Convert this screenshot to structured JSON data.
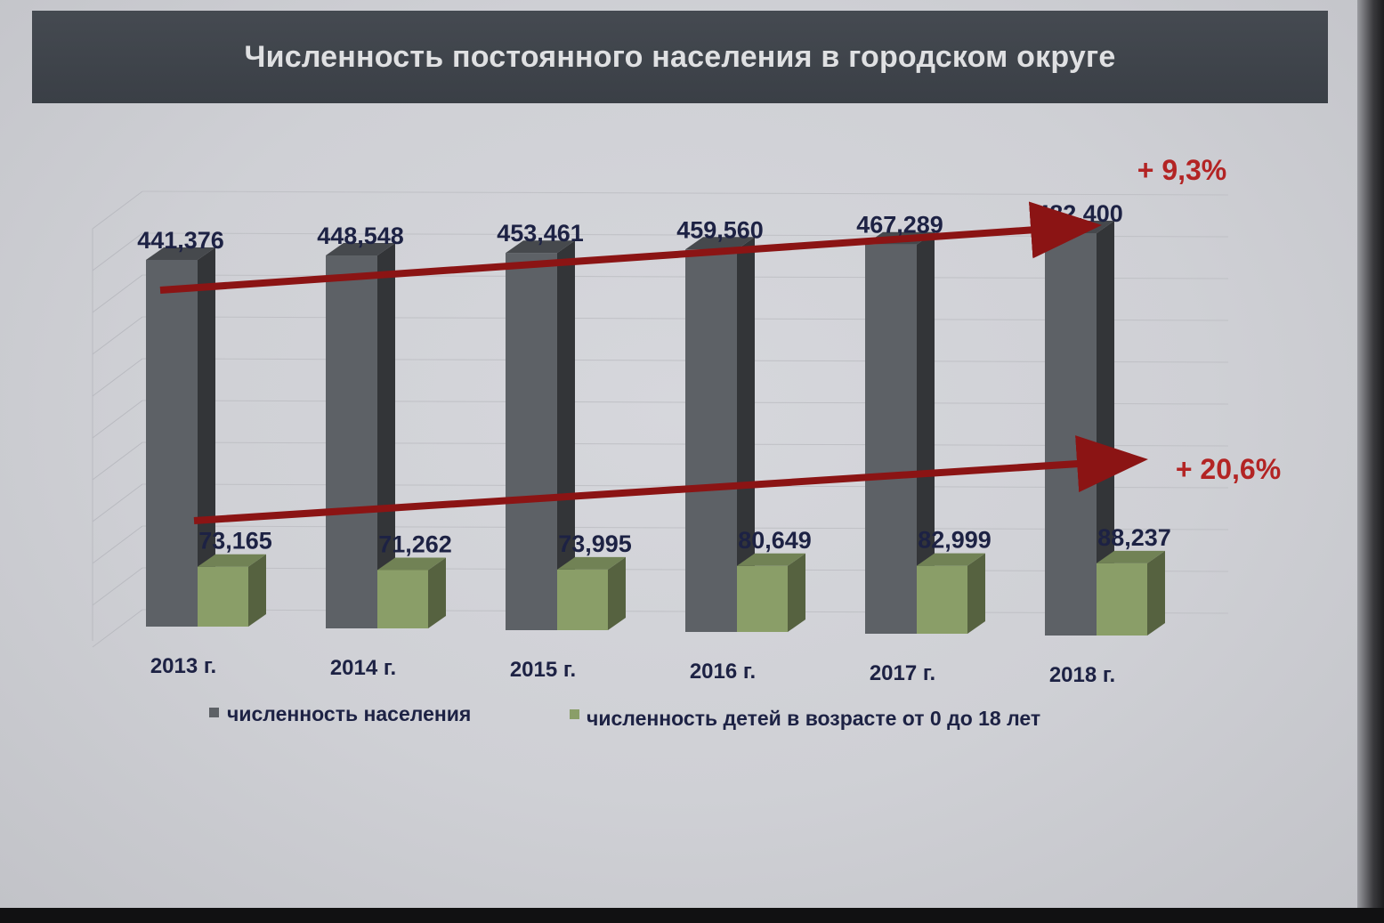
{
  "slide": {
    "title": "Численность постоянного населения в городском округе"
  },
  "colors": {
    "population_bar": "#5d6166",
    "children_bar": "#8a9e68",
    "trend_arrow": "#8b1414",
    "value_label": "#1d2244",
    "growth_label": "#b32424"
  },
  "chart_data": {
    "type": "bar",
    "title": "Численность постоянного населения в городском округе",
    "categories": [
      "2013 г.",
      "2014 г.",
      "2015 г.",
      "2016 г.",
      "2017 г.",
      "2018 г."
    ],
    "series": [
      {
        "name": "численность населения",
        "values": [
          441376,
          448548,
          453461,
          459560,
          467289,
          482400
        ],
        "labels": [
          "441,376",
          "448,548",
          "453,461",
          "459,560",
          "467,289",
          "482,400"
        ],
        "color": "#5d6166"
      },
      {
        "name": "численность детей в возрасте от 0 до 18 лет",
        "values": [
          73165,
          71262,
          73995,
          80649,
          82999,
          88237
        ],
        "labels": [
          "73,165",
          "71,262",
          "73,995",
          "80,649",
          "82,999",
          "88,237"
        ],
        "color": "#8a9e68"
      }
    ],
    "annotations": [
      {
        "text": "+ 9,3%",
        "series": "численность населения"
      },
      {
        "text": "+  20,6%",
        "series": "численность детей в возрасте от 0 до 18 лет"
      }
    ],
    "grid": true,
    "legend_position": "bottom",
    "three_d": true
  }
}
